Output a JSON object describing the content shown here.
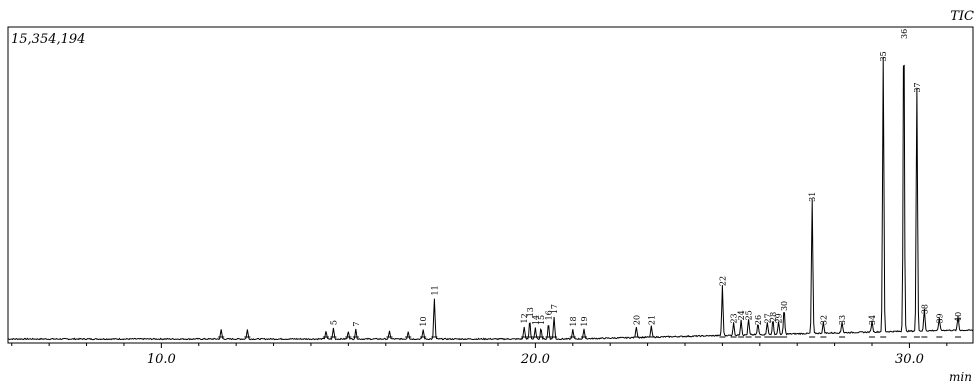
{
  "chart_data": {
    "type": "line",
    "title": "TIC",
    "max_intensity_label": "15,354,194",
    "xlabel": "min",
    "xlim": [
      5.9,
      31.7
    ],
    "ylim": [
      0,
      15354194
    ],
    "x_ticks": [
      10.0,
      20.0,
      30.0
    ],
    "x_tick_labels": [
      "10.0",
      "20.0",
      "30.0"
    ],
    "grid": false,
    "series": [
      {
        "values_description": "chromatogram",
        "peaks": [
          {
            "label": "",
            "x": 11.6,
            "y": 0.03
          },
          {
            "label": "",
            "x": 12.3,
            "y": 0.03
          },
          {
            "label": "",
            "x": 14.4,
            "y": 0.025
          },
          {
            "label": "5",
            "x": 14.6,
            "y": 0.035
          },
          {
            "label": "",
            "x": 15.0,
            "y": 0.025
          },
          {
            "label": "7",
            "x": 15.2,
            "y": 0.03
          },
          {
            "label": "",
            "x": 16.1,
            "y": 0.025
          },
          {
            "label": "",
            "x": 16.6,
            "y": 0.025
          },
          {
            "label": "10",
            "x": 17.0,
            "y": 0.03
          },
          {
            "label": "11",
            "x": 17.3,
            "y": 0.13
          },
          {
            "label": "12",
            "x": 19.7,
            "y": 0.04
          },
          {
            "label": "13",
            "x": 19.85,
            "y": 0.06
          },
          {
            "label": "14",
            "x": 20.0,
            "y": 0.035
          },
          {
            "label": "15",
            "x": 20.15,
            "y": 0.035
          },
          {
            "label": "16",
            "x": 20.35,
            "y": 0.05
          },
          {
            "label": "17",
            "x": 20.5,
            "y": 0.07
          },
          {
            "label": "18",
            "x": 21.0,
            "y": 0.03
          },
          {
            "label": "19",
            "x": 21.3,
            "y": 0.03
          },
          {
            "label": "20",
            "x": 22.7,
            "y": 0.035
          },
          {
            "label": "21",
            "x": 23.1,
            "y": 0.035
          },
          {
            "label": "22",
            "x": 25.0,
            "y": 0.16
          },
          {
            "label": "23",
            "x": 25.3,
            "y": 0.04
          },
          {
            "label": "24",
            "x": 25.5,
            "y": 0.05
          },
          {
            "label": "25",
            "x": 25.7,
            "y": 0.05
          },
          {
            "label": "26",
            "x": 25.95,
            "y": 0.035
          },
          {
            "label": "27",
            "x": 26.2,
            "y": 0.04
          },
          {
            "label": "28",
            "x": 26.35,
            "y": 0.045
          },
          {
            "label": "29",
            "x": 26.5,
            "y": 0.04
          },
          {
            "label": "30",
            "x": 26.65,
            "y": 0.08
          },
          {
            "label": "31",
            "x": 27.4,
            "y": 0.43
          },
          {
            "label": "32",
            "x": 27.7,
            "y": 0.035
          },
          {
            "label": "33",
            "x": 28.2,
            "y": 0.035
          },
          {
            "label": "34",
            "x": 29.0,
            "y": 0.035
          },
          {
            "label": "35",
            "x": 29.3,
            "y": 0.88
          },
          {
            "label": "36",
            "x": 29.85,
            "y": 1.0
          },
          {
            "label": "37",
            "x": 30.2,
            "y": 0.78
          },
          {
            "label": "38",
            "x": 30.4,
            "y": 0.07
          },
          {
            "label": "39",
            "x": 30.8,
            "y": 0.04
          },
          {
            "label": "40",
            "x": 31.3,
            "y": 0.045
          }
        ]
      }
    ]
  }
}
